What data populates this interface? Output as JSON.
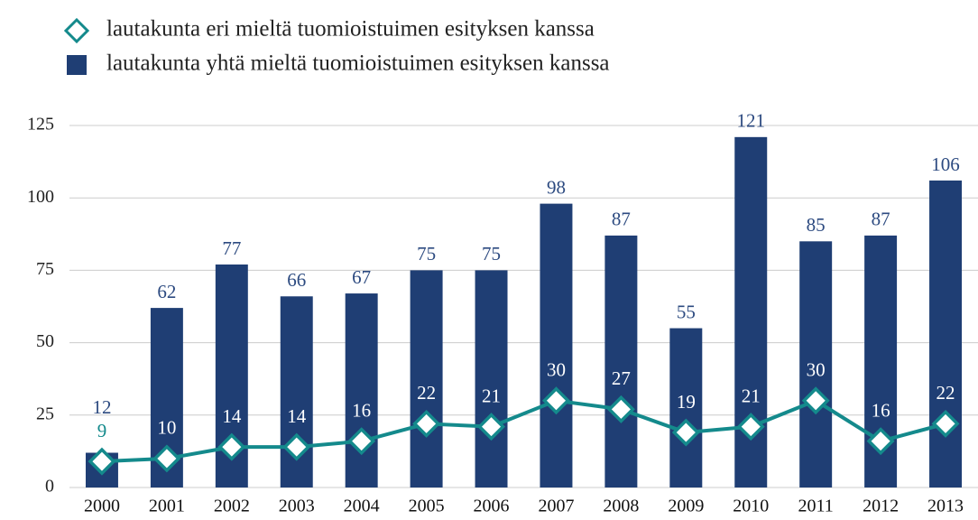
{
  "chart_data": {
    "type": "bar",
    "categories": [
      "2000",
      "2001",
      "2002",
      "2003",
      "2004",
      "2005",
      "2006",
      "2007",
      "2008",
      "2009",
      "2010",
      "2011",
      "2012",
      "2013"
    ],
    "series": [
      {
        "name": "lautakunta eri mieltä tuomioistuimen esityksen kanssa",
        "type": "line",
        "color": "#148a8c",
        "values": [
          9,
          10,
          14,
          14,
          16,
          22,
          21,
          30,
          27,
          19,
          21,
          30,
          16,
          22
        ]
      },
      {
        "name": "lautakunta yhtä mieltä tuomioistuimen esityksen kanssa",
        "type": "bar",
        "color": "#1f3e74",
        "values": [
          12,
          62,
          77,
          66,
          67,
          75,
          75,
          98,
          87,
          55,
          121,
          85,
          87,
          106
        ]
      }
    ],
    "ylim": [
      0,
      125
    ],
    "yticks": [
      0,
      25,
      50,
      75,
      100,
      125
    ],
    "grid": true,
    "legend": "top-left"
  }
}
